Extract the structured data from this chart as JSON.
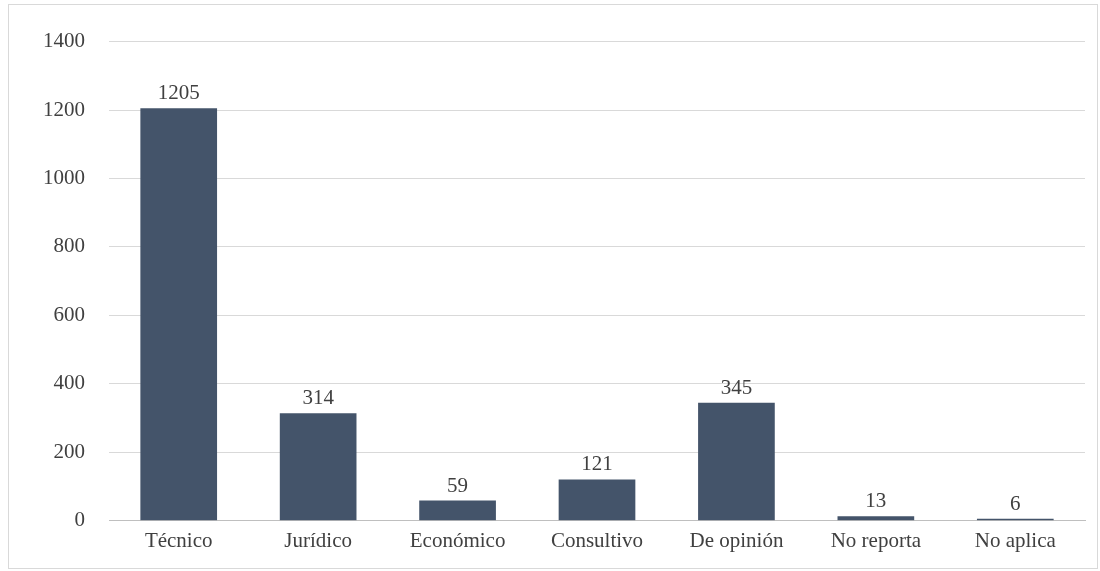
{
  "chart_data": {
    "type": "bar",
    "categories": [
      "Técnico",
      "Jurídico",
      "Económico",
      "Consultivo",
      "De opinión",
      "No reporta",
      "No aplica"
    ],
    "values": [
      1205,
      314,
      59,
      121,
      345,
      13,
      6
    ],
    "color": "#44546a",
    "ylim": [
      0,
      1400
    ],
    "yticks": [
      0,
      200,
      400,
      600,
      800,
      1000,
      1200,
      1400
    ],
    "grid": "y",
    "legend": false,
    "data_labels": true
  }
}
